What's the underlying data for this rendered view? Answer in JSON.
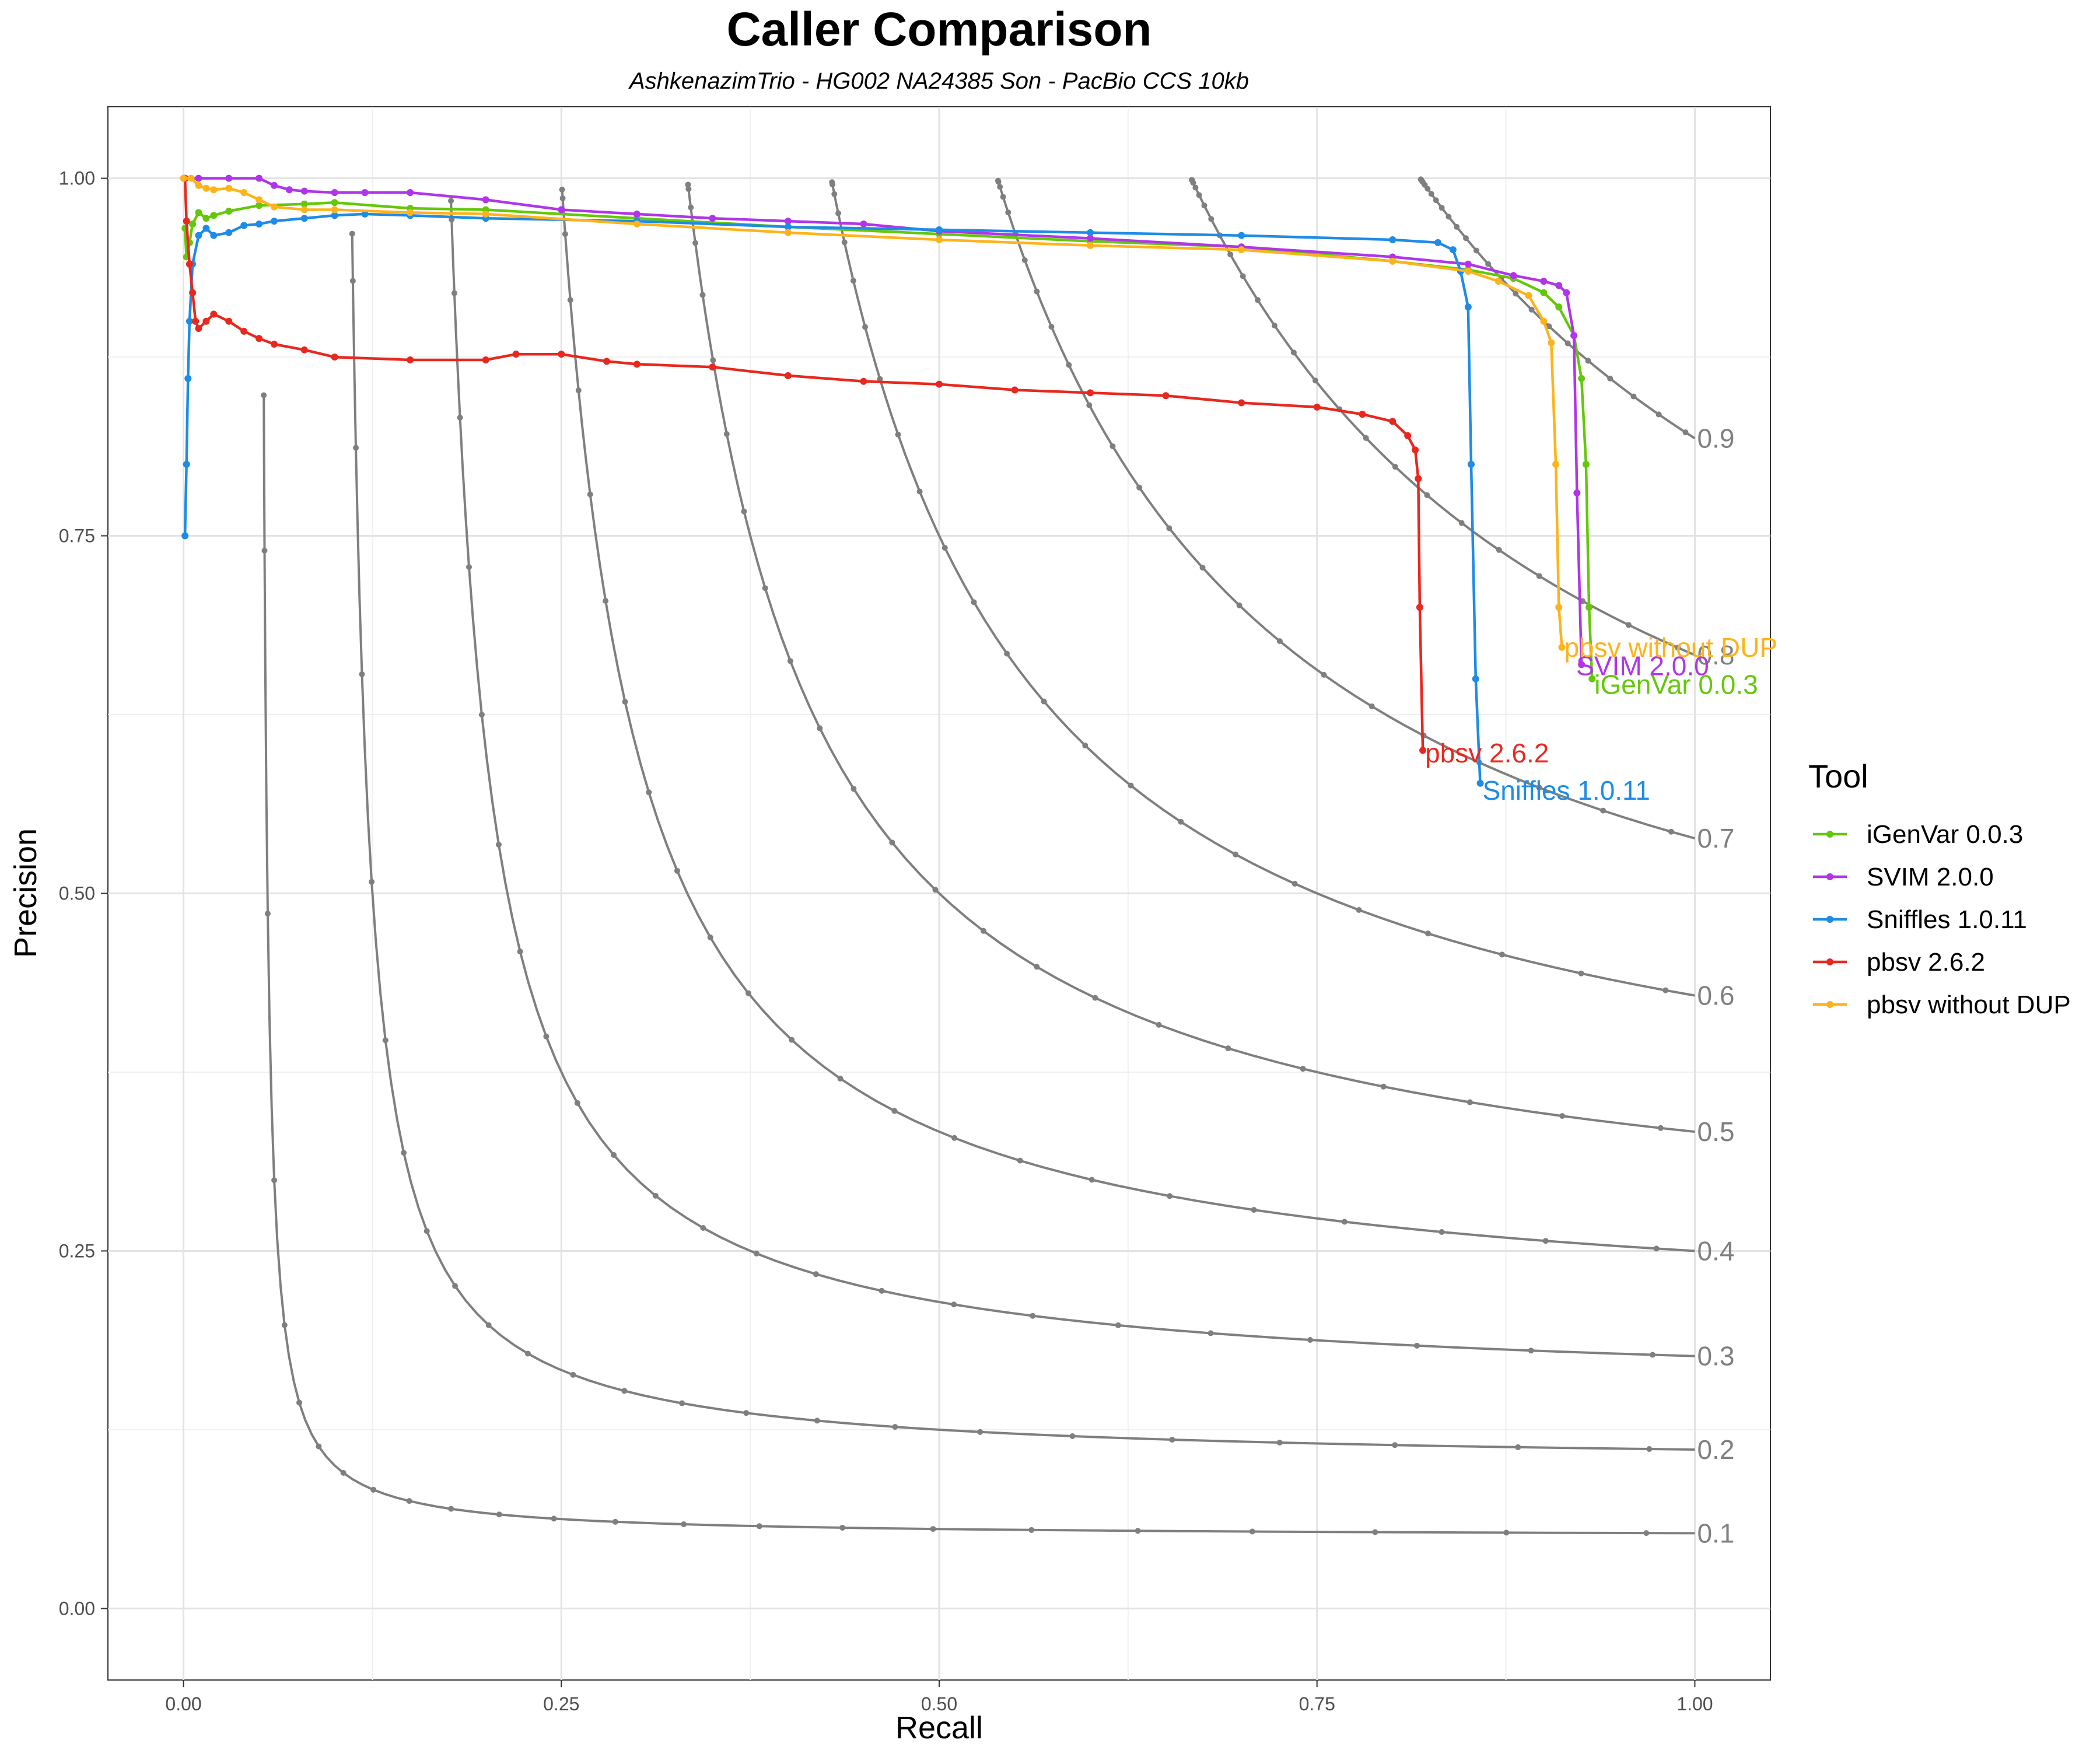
{
  "chart_data": {
    "type": "line",
    "title": "Caller Comparison",
    "subtitle": "AshkenazimTrio - HG002 NA24385 Son - PacBio CCS 10kb",
    "xlabel": "Recall",
    "ylabel": "Precision",
    "xlim": [
      -0.05,
      1.05
    ],
    "ylim": [
      -0.05,
      1.05
    ],
    "x_ticks": [
      0,
      0.25,
      0.5,
      0.75,
      1
    ],
    "x_tick_labels": [
      "0.00",
      "0.25",
      "0.50",
      "0.75",
      "1.00"
    ],
    "y_ticks": [
      0,
      0.25,
      0.5,
      0.75,
      1
    ],
    "y_tick_labels": [
      "0.00",
      "0.25",
      "0.50",
      "0.75",
      "1.00"
    ],
    "grid": true,
    "legend_title": "Tool",
    "legend_position": "right",
    "f_contours": {
      "color": "#7f7f7f",
      "levels": [
        0.1,
        0.2,
        0.3,
        0.4,
        0.5,
        0.6,
        0.7,
        0.8,
        0.9
      ],
      "labels": [
        "0.1",
        "0.2",
        "0.3",
        "0.4",
        "0.5",
        "0.6",
        "0.7",
        "0.8",
        "0.9"
      ]
    },
    "series": [
      {
        "name": "iGenVar 0.0.3",
        "color": "#64c80a",
        "points": [
          [
            0.001,
            0.965
          ],
          [
            0.002,
            0.945
          ],
          [
            0.004,
            0.955
          ],
          [
            0.006,
            0.968
          ],
          [
            0.01,
            0.976
          ],
          [
            0.015,
            0.972
          ],
          [
            0.02,
            0.974
          ],
          [
            0.03,
            0.977
          ],
          [
            0.05,
            0.981
          ],
          [
            0.08,
            0.982
          ],
          [
            0.1,
            0.983
          ],
          [
            0.15,
            0.979
          ],
          [
            0.2,
            0.978
          ],
          [
            0.3,
            0.972
          ],
          [
            0.4,
            0.966
          ],
          [
            0.5,
            0.961
          ],
          [
            0.6,
            0.956
          ],
          [
            0.7,
            0.952
          ],
          [
            0.8,
            0.942
          ],
          [
            0.85,
            0.936
          ],
          [
            0.88,
            0.93
          ],
          [
            0.9,
            0.92
          ],
          [
            0.91,
            0.91
          ],
          [
            0.92,
            0.89
          ],
          [
            0.925,
            0.86
          ],
          [
            0.928,
            0.8
          ],
          [
            0.93,
            0.7
          ],
          [
            0.932,
            0.65
          ]
        ],
        "end_label": "iGenVar 0.0.3",
        "label_pos": [
          0.932,
          0.646
        ]
      },
      {
        "name": "SVIM 2.0.0",
        "color": "#b035e8",
        "points": [
          [
            0.001,
            1.0
          ],
          [
            0.01,
            1.0
          ],
          [
            0.03,
            1.0
          ],
          [
            0.05,
            1.0
          ],
          [
            0.06,
            0.995
          ],
          [
            0.07,
            0.992
          ],
          [
            0.08,
            0.991
          ],
          [
            0.1,
            0.99
          ],
          [
            0.12,
            0.99
          ],
          [
            0.15,
            0.99
          ],
          [
            0.2,
            0.985
          ],
          [
            0.25,
            0.978
          ],
          [
            0.3,
            0.975
          ],
          [
            0.35,
            0.972
          ],
          [
            0.4,
            0.97
          ],
          [
            0.45,
            0.968
          ],
          [
            0.5,
            0.963
          ],
          [
            0.6,
            0.958
          ],
          [
            0.7,
            0.952
          ],
          [
            0.8,
            0.945
          ],
          [
            0.85,
            0.94
          ],
          [
            0.88,
            0.932
          ],
          [
            0.9,
            0.928
          ],
          [
            0.91,
            0.925
          ],
          [
            0.915,
            0.92
          ],
          [
            0.92,
            0.89
          ],
          [
            0.922,
            0.78
          ],
          [
            0.925,
            0.66
          ]
        ],
        "end_label": "SVIM 2.0.0",
        "label_pos": [
          0.92,
          0.659
        ]
      },
      {
        "name": "Sniffles 1.0.11",
        "color": "#1e8ce6",
        "points": [
          [
            0.001,
            0.75
          ],
          [
            0.002,
            0.8
          ],
          [
            0.003,
            0.86
          ],
          [
            0.004,
            0.9
          ],
          [
            0.006,
            0.94
          ],
          [
            0.01,
            0.96
          ],
          [
            0.015,
            0.965
          ],
          [
            0.02,
            0.96
          ],
          [
            0.03,
            0.962
          ],
          [
            0.04,
            0.967
          ],
          [
            0.05,
            0.968
          ],
          [
            0.06,
            0.97
          ],
          [
            0.08,
            0.972
          ],
          [
            0.1,
            0.974
          ],
          [
            0.12,
            0.975
          ],
          [
            0.15,
            0.974
          ],
          [
            0.2,
            0.972
          ],
          [
            0.3,
            0.97
          ],
          [
            0.4,
            0.966
          ],
          [
            0.5,
            0.964
          ],
          [
            0.6,
            0.962
          ],
          [
            0.7,
            0.96
          ],
          [
            0.8,
            0.957
          ],
          [
            0.83,
            0.955
          ],
          [
            0.84,
            0.95
          ],
          [
            0.845,
            0.935
          ],
          [
            0.85,
            0.91
          ],
          [
            0.852,
            0.8
          ],
          [
            0.855,
            0.65
          ],
          [
            0.858,
            0.577
          ]
        ],
        "end_label": "Sniffles 1.0.11",
        "label_pos": [
          0.858,
          0.572
        ]
      },
      {
        "name": "pbsv 2.6.2",
        "color": "#e8281e",
        "points": [
          [
            0.001,
            1.0
          ],
          [
            0.002,
            0.97
          ],
          [
            0.004,
            0.94
          ],
          [
            0.006,
            0.92
          ],
          [
            0.008,
            0.9
          ],
          [
            0.01,
            0.895
          ],
          [
            0.015,
            0.9
          ],
          [
            0.02,
            0.905
          ],
          [
            0.03,
            0.9
          ],
          [
            0.04,
            0.893
          ],
          [
            0.05,
            0.888
          ],
          [
            0.06,
            0.884
          ],
          [
            0.08,
            0.88
          ],
          [
            0.1,
            0.875
          ],
          [
            0.15,
            0.873
          ],
          [
            0.2,
            0.873
          ],
          [
            0.22,
            0.877
          ],
          [
            0.25,
            0.877
          ],
          [
            0.28,
            0.872
          ],
          [
            0.3,
            0.87
          ],
          [
            0.35,
            0.868
          ],
          [
            0.4,
            0.862
          ],
          [
            0.45,
            0.858
          ],
          [
            0.5,
            0.856
          ],
          [
            0.55,
            0.852
          ],
          [
            0.6,
            0.85
          ],
          [
            0.65,
            0.848
          ],
          [
            0.7,
            0.843
          ],
          [
            0.75,
            0.84
          ],
          [
            0.78,
            0.835
          ],
          [
            0.8,
            0.83
          ],
          [
            0.81,
            0.82
          ],
          [
            0.815,
            0.81
          ],
          [
            0.817,
            0.79
          ],
          [
            0.818,
            0.7
          ],
          [
            0.82,
            0.6
          ]
        ],
        "end_label": "pbsv 2.6.2",
        "label_pos": [
          0.82,
          0.598
        ]
      },
      {
        "name": "pbsv without DUP",
        "color": "#ffb31a",
        "points": [
          [
            0.0,
            1.0
          ],
          [
            0.005,
            1.0
          ],
          [
            0.01,
            0.995
          ],
          [
            0.015,
            0.993
          ],
          [
            0.02,
            0.992
          ],
          [
            0.03,
            0.993
          ],
          [
            0.04,
            0.99
          ],
          [
            0.05,
            0.985
          ],
          [
            0.06,
            0.98
          ],
          [
            0.08,
            0.978
          ],
          [
            0.1,
            0.978
          ],
          [
            0.15,
            0.976
          ],
          [
            0.2,
            0.975
          ],
          [
            0.3,
            0.968
          ],
          [
            0.4,
            0.962
          ],
          [
            0.5,
            0.957
          ],
          [
            0.6,
            0.953
          ],
          [
            0.7,
            0.95
          ],
          [
            0.8,
            0.942
          ],
          [
            0.85,
            0.935
          ],
          [
            0.87,
            0.928
          ],
          [
            0.89,
            0.918
          ],
          [
            0.9,
            0.9
          ],
          [
            0.905,
            0.885
          ],
          [
            0.908,
            0.8
          ],
          [
            0.91,
            0.7
          ],
          [
            0.912,
            0.672
          ]
        ],
        "end_label": "pbsv without DUP",
        "label_pos": [
          0.912,
          0.672
        ]
      }
    ]
  }
}
